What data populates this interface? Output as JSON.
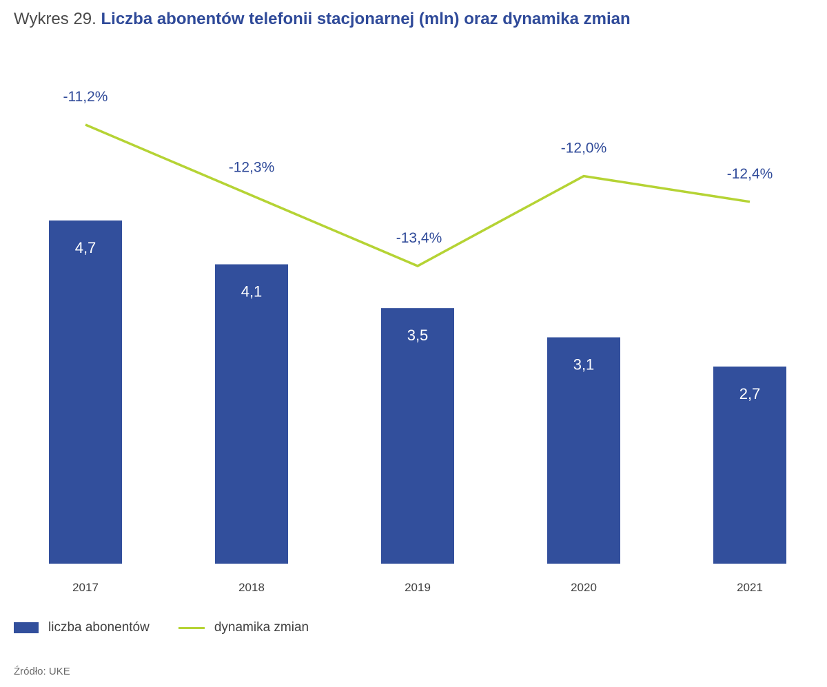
{
  "title": {
    "prefix": "Wykres 29.",
    "main": "Liczba abonentów telefonii stacjonarnej (mln) oraz dynamika zmian"
  },
  "chart_data": {
    "type": "bar",
    "title": "Liczba abonentów telefonii stacjonarnej (mln) oraz dynamika zmian",
    "categories": [
      "2017",
      "2018",
      "2019",
      "2020",
      "2021"
    ],
    "series": [
      {
        "name": "liczba abonentów",
        "type": "bar",
        "values": [
          4.7,
          4.1,
          3.5,
          3.1,
          2.7
        ],
        "labels": [
          "4,7",
          "4,1",
          "3,5",
          "3,1",
          "2,7"
        ],
        "color": "#324f9c"
      },
      {
        "name": "dynamika zmian",
        "type": "line",
        "values": [
          -11.2,
          -12.3,
          -13.4,
          -12.0,
          -12.4
        ],
        "labels": [
          "-11,2%",
          "-12,3%",
          "-13,4%",
          "-12,0%",
          "-12,4%"
        ],
        "color": "#b5d334"
      }
    ],
    "xlabel": "",
    "ylabel": "",
    "ylim": [
      0,
      4.7
    ],
    "line_ylim": [
      -13.4,
      -11.2
    ],
    "grid": false,
    "legend_position": "bottom-left"
  },
  "legend": {
    "bar_label": "liczba abonentów",
    "line_label": "dynamika zmian"
  },
  "source": "Źródło: UKE"
}
